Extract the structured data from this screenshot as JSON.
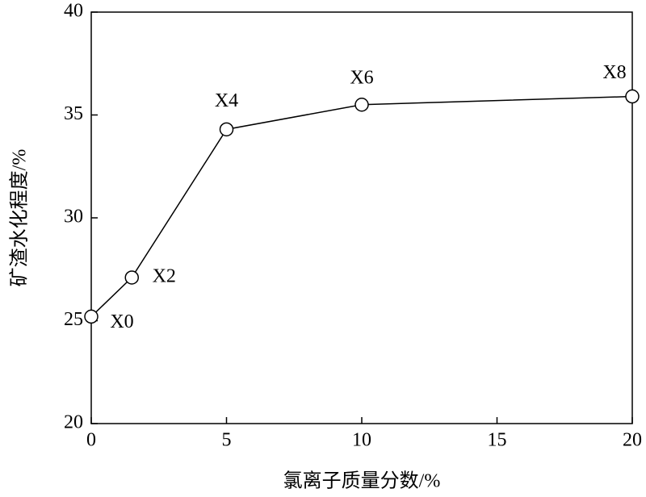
{
  "chart_data": {
    "type": "line",
    "x_label": "氯离子质量分数/%",
    "y_label": "矿渣水化程度/%",
    "x": [
      0,
      1.5,
      5,
      10,
      20
    ],
    "series": [
      {
        "values": [
          25.2,
          27.1,
          34.3,
          35.5,
          35.9
        ],
        "color": "#000000"
      }
    ],
    "point_labels": [
      "X0",
      "X2",
      "X4",
      "X6",
      "X8"
    ],
    "xlim": [
      0,
      20
    ],
    "xticks": [
      0,
      5,
      10,
      15,
      20
    ],
    "ylim": [
      20,
      40
    ],
    "yticks": [
      20,
      25,
      30,
      35,
      40
    ],
    "grid": false
  }
}
